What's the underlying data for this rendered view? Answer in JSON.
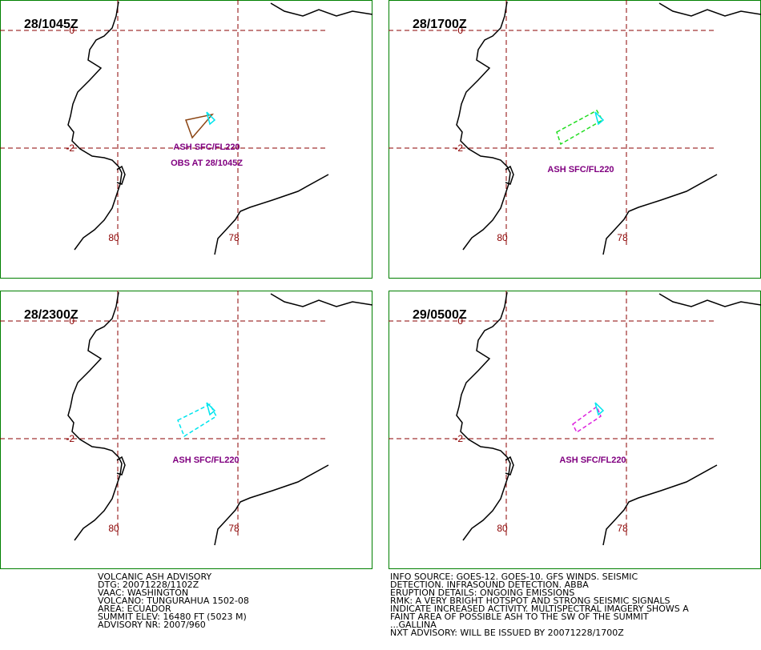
{
  "grid": {
    "lat_labels": [
      "0",
      "-2"
    ],
    "lon_labels": [
      "80",
      "78"
    ]
  },
  "panels": [
    {
      "time": "28/1045Z",
      "labels": [
        "ASH SFC/FL220",
        "OBS AT 28/1045Z"
      ],
      "ash_color": "#8b4513"
    },
    {
      "time": "28/1700Z",
      "labels": [
        "ASH SFC/FL220"
      ],
      "ash_color": "#22dd22"
    },
    {
      "time": "28/2300Z",
      "labels": [
        "ASH SFC/FL220"
      ],
      "ash_color": "#00e5ee"
    },
    {
      "time": "29/0500Z",
      "labels": [
        "ASH SFC/FL220"
      ],
      "ash_color": "#dd22dd"
    }
  ],
  "advisory": {
    "left": [
      "VOLCANIC ASH ADVISORY",
      "DTG: 20071228/1102Z",
      "VAAC: WASHINGTON",
      "VOLCANO: TUNGURAHUA 1502-08",
      "AREA: ECUADOR",
      "SUMMIT ELEV: 16480 FT (5023 M)",
      "ADVISORY NR: 2007/960"
    ],
    "right": [
      "INFO SOURCE: GOES-12. GOES-10. GFS WINDS. SEISMIC",
      "DETECTION. INFRASOUND DETECTION. ABBA",
      "ERUPTION DETAILS: ONGOING EMISSIONS",
      "RMK: A VERY BRIGHT HOTSPOT AND STRONG SEISMIC SIGNALS",
      "INDICATE INCREASED ACTIVITY. MULTISPECTRAL IMAGERY SHOWS A",
      "FAINT AREA OF POSSIBLE ASH TO THE SW OF THE SUMMIT",
      "...GALLINA",
      "NXT ADVISORY: WILL BE ISSUED BY 20071228/1700Z"
    ]
  }
}
